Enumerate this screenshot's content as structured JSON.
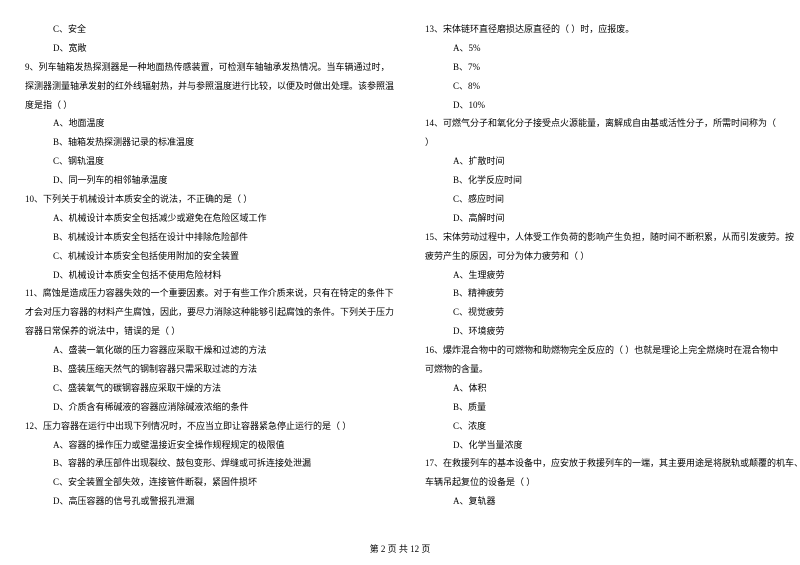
{
  "left_column": {
    "lines": [
      {
        "text": "C、安全",
        "indent": 1
      },
      {
        "text": "D、宽敞",
        "indent": 1
      },
      {
        "text": "9、列车轴箱发热探测器是一种地面热传感装置，可检测车轴轴承发热情况。当车辆通过时，",
        "indent": 0
      },
      {
        "text": "探测器测量轴承发射的红外线辐射热，并与参照温度进行比较，以便及时做出处理。该参照温",
        "indent": 0
      },
      {
        "text": "度是指（    ）",
        "indent": 0
      },
      {
        "text": "A、地面温度",
        "indent": 1
      },
      {
        "text": "B、轴箱发热探测器记录的标准温度",
        "indent": 1
      },
      {
        "text": "C、钢轨温度",
        "indent": 1
      },
      {
        "text": "D、同一列车的相邻轴承温度",
        "indent": 1
      },
      {
        "text": "10、下列关于机械设计本质安全的说法，不正确的是（    ）",
        "indent": 0
      },
      {
        "text": "A、机械设计本质安全包括减少或避免在危险区域工作",
        "indent": 1
      },
      {
        "text": "B、机械设计本质安全包括在设计中排除危险部件",
        "indent": 1
      },
      {
        "text": "C、机械设计本质安全包括使用附加的安全装置",
        "indent": 1
      },
      {
        "text": "D、机械设计本质安全包括不使用危险材料",
        "indent": 1
      },
      {
        "text": "11、腐蚀是造成压力容器失效的一个重要因素。对于有些工作介质来说，只有在特定的条件下",
        "indent": 0
      },
      {
        "text": "才会对压力容器的材料产生腐蚀，因此，要尽力消除这种能够引起腐蚀的条件。下列关于压力",
        "indent": 0
      },
      {
        "text": "容器日常保养的说法中，错误的是（    ）",
        "indent": 0
      },
      {
        "text": "A、盛装一氧化碳的压力容器应采取干燥和过滤的方法",
        "indent": 1
      },
      {
        "text": "B、盛装压缩天然气的钢制容器只需采取过滤的方法",
        "indent": 1
      },
      {
        "text": "C、盛装氧气的碳钢容器应采取干燥的方法",
        "indent": 1
      },
      {
        "text": "D、介质含有稀碱液的容器应消除碱液浓缩的条件",
        "indent": 1
      },
      {
        "text": "12、压力容器在运行中出现下列情况时，不应当立即让容器紧急停止运行的是（    ）",
        "indent": 0
      },
      {
        "text": "A、容器的操作压力或壁温接近安全操作规程规定的极限值",
        "indent": 1
      },
      {
        "text": "B、容器的承压部件出现裂纹、鼓包变形、焊缝或可拆连接处泄漏",
        "indent": 1
      },
      {
        "text": "C、安全装置全部失效，连接管件断裂，紧固件损坏",
        "indent": 1
      },
      {
        "text": "D、高压容器的信号孔或警报孔泄漏",
        "indent": 1
      }
    ]
  },
  "right_column": {
    "lines": [
      {
        "text": "13、宋体链环直径磨损达原直径的（    ）时，应报废。",
        "indent": 0
      },
      {
        "text": "A、5%",
        "indent": 1
      },
      {
        "text": "B、7%",
        "indent": 1
      },
      {
        "text": "C、8%",
        "indent": 1
      },
      {
        "text": "D、10%",
        "indent": 1
      },
      {
        "text": "14、可燃气分子和氧化分子接受点火源能量，离解成自由基或活性分子，所需时间称为（",
        "indent": 0
      },
      {
        "text": "）",
        "indent": 0
      },
      {
        "text": "A、扩散时间",
        "indent": 1
      },
      {
        "text": "B、化学反应时间",
        "indent": 1
      },
      {
        "text": "C、感应时间",
        "indent": 1
      },
      {
        "text": "D、高解时间",
        "indent": 1
      },
      {
        "text": "15、宋体劳动过程中，人体受工作负荷的影响产生负担，随时间不断积累，从而引发疲劳。按",
        "indent": 0
      },
      {
        "text": "疲劳产生的原因，可分为体力疲劳和（    ）",
        "indent": 0
      },
      {
        "text": "A、生理疲劳",
        "indent": 1
      },
      {
        "text": "B、精神疲劳",
        "indent": 1
      },
      {
        "text": "C、视觉疲劳",
        "indent": 1
      },
      {
        "text": "D、环境疲劳",
        "indent": 1
      },
      {
        "text": "16、爆炸混合物中的可燃物和助燃物完全反应的（    ）也就是理论上完全燃烧时在混合物中",
        "indent": 0
      },
      {
        "text": "可燃物的含量。",
        "indent": 0
      },
      {
        "text": "A、体积",
        "indent": 1
      },
      {
        "text": "B、质量",
        "indent": 1
      },
      {
        "text": "C、浓度",
        "indent": 1
      },
      {
        "text": "D、化学当量浓度",
        "indent": 1
      },
      {
        "text": "17、在救援列车的基本设备中，应安放于救援列车的一端，其主要用途是将脱轨或颠覆的机车、",
        "indent": 0
      },
      {
        "text": "车辆吊起复位的设备是（    ）",
        "indent": 0
      },
      {
        "text": "A、复轨器",
        "indent": 1
      }
    ]
  },
  "footer": {
    "text": "第 2 页 共 12 页"
  }
}
